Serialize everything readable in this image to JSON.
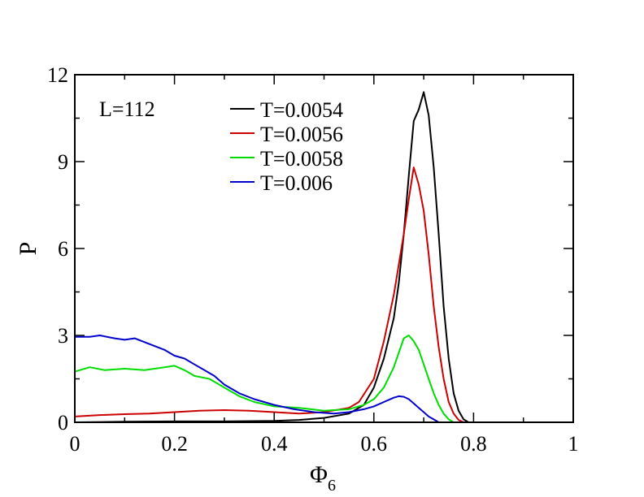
{
  "chart_data": {
    "type": "line",
    "xlabel_main": "Φ",
    "xlabel_sub": "6",
    "ylabel": "P",
    "annotation": "L=112",
    "xlim": [
      0,
      1
    ],
    "ylim": [
      0,
      12
    ],
    "xticks": [
      0,
      0.2,
      0.4,
      0.6,
      0.8,
      1
    ],
    "xtick_labels": [
      "0",
      "0.2",
      "0.4",
      "0.6",
      "0.8",
      "1"
    ],
    "yticks": [
      0,
      3,
      6,
      9,
      12
    ],
    "ytick_labels": [
      "0",
      "3",
      "6",
      "9",
      "12"
    ],
    "grid": false,
    "legend_position": "top-center",
    "series": [
      {
        "name": "T=0.0054",
        "color": "#000000",
        "points": [
          [
            0,
            0
          ],
          [
            0.1,
            0.02
          ],
          [
            0.2,
            0.03
          ],
          [
            0.3,
            0.03
          ],
          [
            0.4,
            0.05
          ],
          [
            0.45,
            0.08
          ],
          [
            0.5,
            0.15
          ],
          [
            0.55,
            0.3
          ],
          [
            0.58,
            0.6
          ],
          [
            0.6,
            1.2
          ],
          [
            0.62,
            2.2
          ],
          [
            0.64,
            3.6
          ],
          [
            0.65,
            4.8
          ],
          [
            0.66,
            6.5
          ],
          [
            0.67,
            8.5
          ],
          [
            0.68,
            10.4
          ],
          [
            0.69,
            10.8
          ],
          [
            0.7,
            11.4
          ],
          [
            0.71,
            10.6
          ],
          [
            0.72,
            8.8
          ],
          [
            0.73,
            6.5
          ],
          [
            0.74,
            4.0
          ],
          [
            0.75,
            2.2
          ],
          [
            0.76,
            1.0
          ],
          [
            0.77,
            0.4
          ],
          [
            0.78,
            0.1
          ],
          [
            0.79,
            0
          ]
        ]
      },
      {
        "name": "T=0.0056",
        "color": "#cc0000",
        "points": [
          [
            0,
            0.2
          ],
          [
            0.05,
            0.25
          ],
          [
            0.1,
            0.28
          ],
          [
            0.15,
            0.3
          ],
          [
            0.2,
            0.35
          ],
          [
            0.25,
            0.4
          ],
          [
            0.3,
            0.42
          ],
          [
            0.35,
            0.4
          ],
          [
            0.4,
            0.35
          ],
          [
            0.45,
            0.3
          ],
          [
            0.5,
            0.35
          ],
          [
            0.55,
            0.5
          ],
          [
            0.57,
            0.7
          ],
          [
            0.6,
            1.5
          ],
          [
            0.62,
            2.8
          ],
          [
            0.64,
            4.4
          ],
          [
            0.66,
            6.5
          ],
          [
            0.67,
            7.7
          ],
          [
            0.68,
            8.8
          ],
          [
            0.69,
            8.2
          ],
          [
            0.7,
            7.3
          ],
          [
            0.71,
            5.8
          ],
          [
            0.72,
            4.0
          ],
          [
            0.73,
            2.6
          ],
          [
            0.74,
            1.5
          ],
          [
            0.75,
            0.7
          ],
          [
            0.76,
            0.3
          ],
          [
            0.77,
            0.08
          ],
          [
            0.78,
            0
          ]
        ]
      },
      {
        "name": "T=0.0058",
        "color": "#00dd00",
        "points": [
          [
            0,
            1.75
          ],
          [
            0.03,
            1.9
          ],
          [
            0.06,
            1.8
          ],
          [
            0.1,
            1.85
          ],
          [
            0.14,
            1.8
          ],
          [
            0.18,
            1.9
          ],
          [
            0.2,
            1.95
          ],
          [
            0.22,
            1.8
          ],
          [
            0.24,
            1.6
          ],
          [
            0.27,
            1.5
          ],
          [
            0.3,
            1.2
          ],
          [
            0.33,
            0.9
          ],
          [
            0.36,
            0.7
          ],
          [
            0.4,
            0.55
          ],
          [
            0.45,
            0.5
          ],
          [
            0.5,
            0.4
          ],
          [
            0.55,
            0.45
          ],
          [
            0.58,
            0.6
          ],
          [
            0.6,
            0.8
          ],
          [
            0.62,
            1.2
          ],
          [
            0.64,
            1.9
          ],
          [
            0.65,
            2.4
          ],
          [
            0.66,
            2.9
          ],
          [
            0.67,
            3.0
          ],
          [
            0.68,
            2.8
          ],
          [
            0.69,
            2.5
          ],
          [
            0.7,
            2.0
          ],
          [
            0.71,
            1.5
          ],
          [
            0.72,
            1.0
          ],
          [
            0.73,
            0.6
          ],
          [
            0.74,
            0.3
          ],
          [
            0.75,
            0.1
          ],
          [
            0.76,
            0
          ]
        ]
      },
      {
        "name": "T=0.006",
        "color": "#0000cc",
        "points": [
          [
            0,
            2.95
          ],
          [
            0.03,
            2.95
          ],
          [
            0.05,
            3.0
          ],
          [
            0.08,
            2.9
          ],
          [
            0.1,
            2.85
          ],
          [
            0.12,
            2.9
          ],
          [
            0.15,
            2.7
          ],
          [
            0.18,
            2.5
          ],
          [
            0.2,
            2.3
          ],
          [
            0.22,
            2.2
          ],
          [
            0.24,
            2.0
          ],
          [
            0.26,
            1.8
          ],
          [
            0.28,
            1.6
          ],
          [
            0.3,
            1.3
          ],
          [
            0.33,
            1.0
          ],
          [
            0.36,
            0.8
          ],
          [
            0.4,
            0.6
          ],
          [
            0.44,
            0.45
          ],
          [
            0.48,
            0.35
          ],
          [
            0.52,
            0.3
          ],
          [
            0.55,
            0.35
          ],
          [
            0.58,
            0.45
          ],
          [
            0.6,
            0.55
          ],
          [
            0.62,
            0.7
          ],
          [
            0.64,
            0.85
          ],
          [
            0.65,
            0.9
          ],
          [
            0.66,
            0.88
          ],
          [
            0.67,
            0.8
          ],
          [
            0.68,
            0.65
          ],
          [
            0.69,
            0.5
          ],
          [
            0.7,
            0.35
          ],
          [
            0.71,
            0.2
          ],
          [
            0.72,
            0.1
          ],
          [
            0.73,
            0
          ]
        ]
      }
    ]
  }
}
